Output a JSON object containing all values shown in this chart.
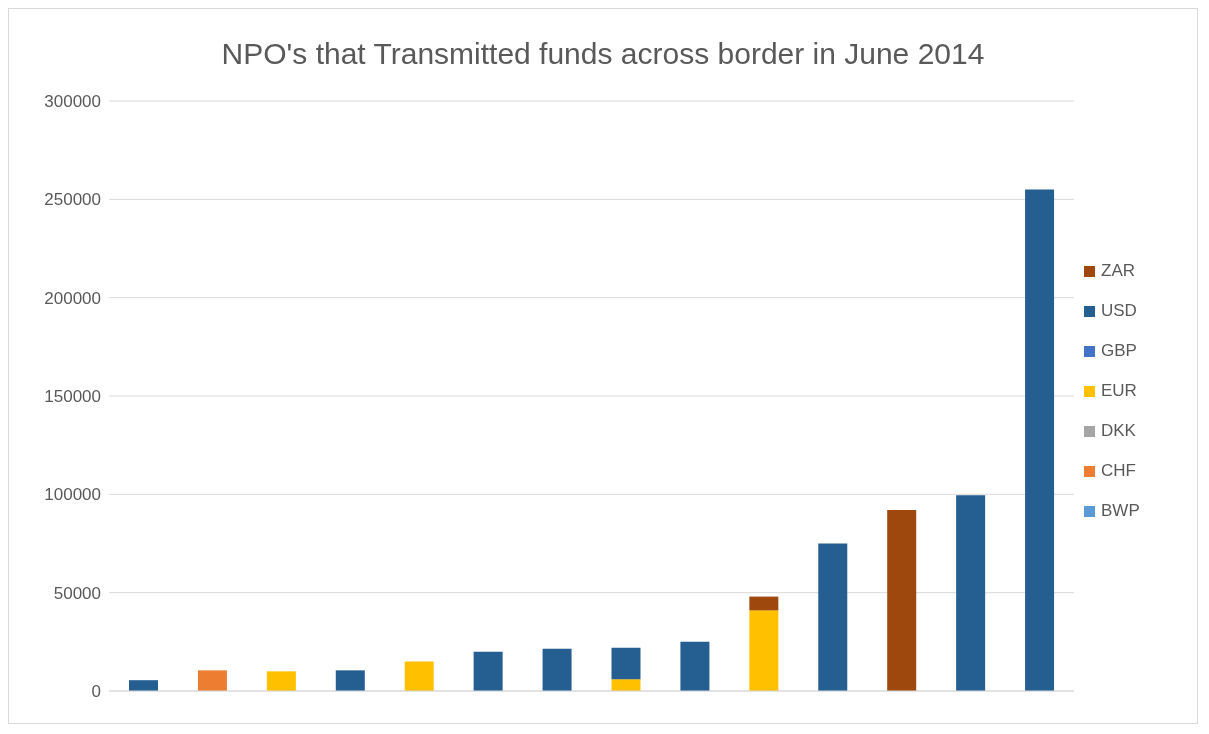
{
  "chart_data": {
    "type": "bar",
    "title": "NPO's that Transmitted funds across border in June 2014",
    "stacked": true,
    "categories": [
      null,
      null,
      null,
      null,
      null,
      null,
      null,
      null,
      null,
      null,
      null,
      null,
      null,
      null
    ],
    "series": [
      {
        "name": "BWP",
        "color": "#5b9bd5",
        "values": [
          null,
          null,
          null,
          null,
          null,
          null,
          null,
          null,
          null,
          null,
          null,
          null,
          null,
          null
        ]
      },
      {
        "name": "CHF",
        "color": "#ed7d31",
        "values": [
          null,
          10500,
          null,
          null,
          null,
          null,
          null,
          null,
          null,
          null,
          null,
          null,
          null,
          null
        ]
      },
      {
        "name": "DKK",
        "color": "#a5a5a5",
        "values": [
          null,
          null,
          null,
          null,
          null,
          null,
          null,
          null,
          null,
          null,
          null,
          null,
          null,
          null
        ]
      },
      {
        "name": "EUR",
        "color": "#ffc000",
        "values": [
          null,
          null,
          10000,
          null,
          15000,
          null,
          null,
          6000,
          null,
          41000,
          null,
          null,
          null,
          null
        ]
      },
      {
        "name": "GBP",
        "color": "#4472c4",
        "values": [
          null,
          null,
          null,
          null,
          null,
          null,
          null,
          null,
          null,
          null,
          null,
          null,
          null,
          null
        ]
      },
      {
        "name": "USD",
        "color": "#255e91",
        "values": [
          5500,
          null,
          null,
          10500,
          null,
          20000,
          21500,
          16000,
          25000,
          null,
          75000,
          null,
          99500,
          255000
        ]
      },
      {
        "name": "ZAR",
        "color": "#9e480e",
        "values": [
          null,
          null,
          null,
          null,
          null,
          null,
          null,
          null,
          null,
          7000,
          null,
          92000,
          null,
          null
        ]
      }
    ],
    "ylim": [
      0,
      300000
    ],
    "yticks": [
      0,
      50000,
      100000,
      150000,
      200000,
      250000,
      300000
    ],
    "grid": "y",
    "legend": "right",
    "tick_labels": "y"
  }
}
